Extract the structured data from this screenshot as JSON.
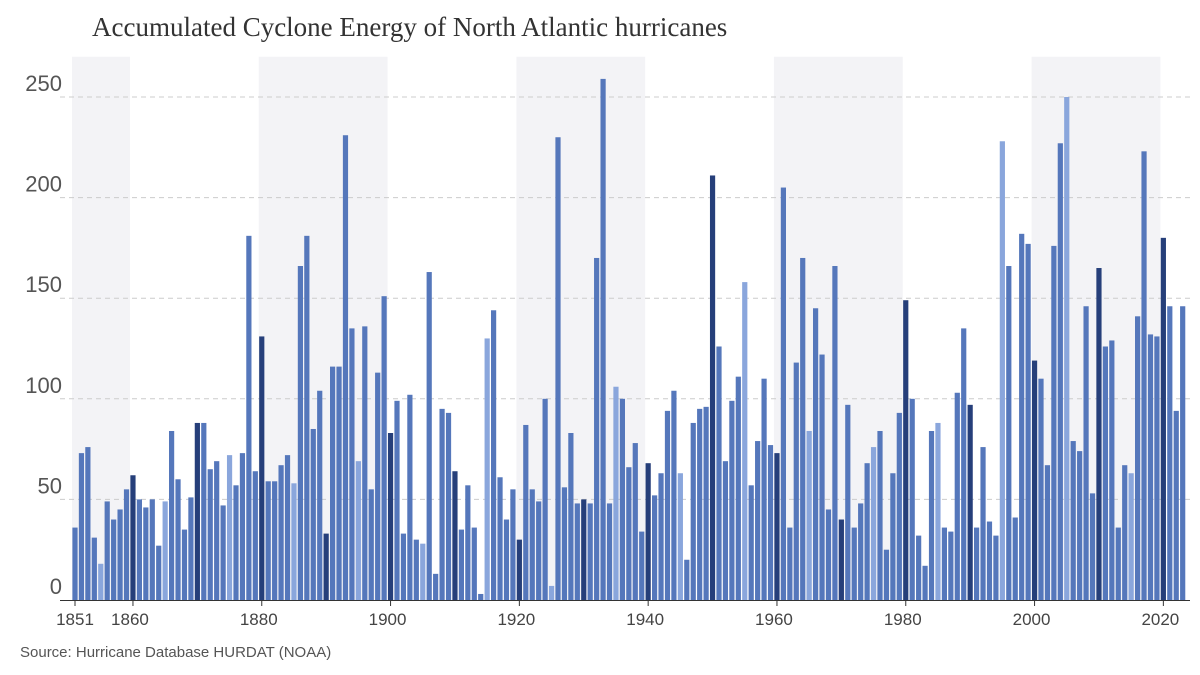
{
  "chart_data": {
    "type": "bar",
    "title": "Accumulated Cyclone Energy of North Atlantic hurricanes",
    "source": "Source: Hurricane Database HURDAT (NOAA)",
    "x_start": 1851,
    "x_ticks": [
      1851,
      1860,
      1880,
      1900,
      1920,
      1940,
      1960,
      1980,
      2000,
      2020
    ],
    "y_ticks": [
      0,
      50,
      100,
      150,
      200,
      250
    ],
    "ylim": [
      0,
      270
    ],
    "grid": true,
    "shaded_periods": [
      [
        1851,
        1859
      ],
      [
        1880,
        1899
      ],
      [
        1920,
        1939
      ],
      [
        1960,
        1979
      ],
      [
        2000,
        2019
      ]
    ],
    "colors": {
      "default": "#5577bb",
      "decade_start": "#263f7a",
      "year_ending_5": "#8aa6dc",
      "shade": "#f3f3f6",
      "grid": "#cccccc"
    },
    "values": [
      36,
      73,
      76,
      31,
      18,
      49,
      40,
      45,
      55,
      62,
      50,
      46,
      50,
      27,
      49,
      84,
      60,
      35,
      51,
      88,
      88,
      65,
      69,
      47,
      72,
      57,
      73,
      181,
      64,
      131,
      59,
      59,
      67,
      72,
      58,
      166,
      181,
      85,
      104,
      33,
      116,
      116,
      231,
      135,
      69,
      136,
      55,
      113,
      151,
      83,
      99,
      33,
      102,
      30,
      28,
      163,
      13,
      95,
      93,
      64,
      35,
      57,
      36,
      3,
      130,
      144,
      61,
      40,
      55,
      30,
      87,
      55,
      49,
      100,
      7,
      230,
      56,
      83,
      48,
      50,
      48,
      170,
      259,
      48,
      106,
      100,
      66,
      78,
      34,
      68,
      52,
      63,
      94,
      104,
      63,
      20,
      88,
      95,
      96,
      211,
      126,
      69,
      99,
      111,
      158,
      57,
      79,
      110,
      77,
      73,
      205,
      36,
      118,
      170,
      84,
      145,
      122,
      45,
      166,
      40,
      97,
      36,
      48,
      68,
      76,
      84,
      25,
      63,
      93,
      149,
      100,
      32,
      17,
      84,
      88,
      36,
      34,
      103,
      135,
      97,
      36,
      76,
      39,
      32,
      228,
      166,
      41,
      182,
      177,
      119,
      110,
      67,
      176,
      227,
      250,
      79,
      74,
      146,
      53,
      165,
      126,
      129,
      36,
      67,
      63,
      141,
      223,
      132,
      131,
      180,
      146,
      94,
      146
    ]
  }
}
